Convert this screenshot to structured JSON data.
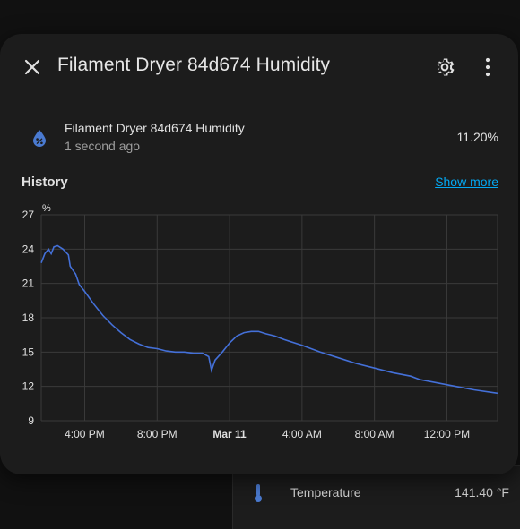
{
  "dialog": {
    "title": "Filament Dryer 84d674 Humidity"
  },
  "entity": {
    "name": "Filament Dryer 84d674 Humidity",
    "last_changed": "1 second ago",
    "state": "11.20%"
  },
  "history": {
    "heading": "History",
    "show_more": "Show more"
  },
  "background_entity": {
    "label": "Temperature",
    "value": "141.40 °F"
  },
  "icons": {
    "close": "close-icon",
    "settings": "gear-icon",
    "more": "dots-vertical-icon",
    "entity": "water-percent-icon",
    "background": "thermometer-icon"
  },
  "colors": {
    "line": "#4470d8",
    "link": "#03a9f4",
    "entity_icon": "#4a7ad0"
  },
  "chart_data": {
    "type": "line",
    "unit": "%",
    "ylim": [
      9,
      27
    ],
    "yticks": [
      9,
      12,
      15,
      18,
      21,
      24,
      27
    ],
    "xticks": [
      {
        "label": "4:00 PM",
        "hour": 16,
        "bold": false
      },
      {
        "label": "8:00 PM",
        "hour": 20,
        "bold": false
      },
      {
        "label": "Mar 11",
        "hour": 24,
        "bold": true
      },
      {
        "label": "4:00 AM",
        "hour": 28,
        "bold": false
      },
      {
        "label": "8:00 AM",
        "hour": 32,
        "bold": false
      },
      {
        "label": "12:00 PM",
        "hour": 36,
        "bold": false
      }
    ],
    "xlim": [
      13.6,
      38.8
    ],
    "grid": true,
    "series": [
      {
        "name": "",
        "points": [
          [
            13.6,
            22.8
          ],
          [
            13.8,
            23.6
          ],
          [
            14.0,
            24.0
          ],
          [
            14.15,
            23.6
          ],
          [
            14.3,
            24.2
          ],
          [
            14.5,
            24.3
          ],
          [
            14.8,
            24.0
          ],
          [
            15.1,
            23.5
          ],
          [
            15.2,
            22.5
          ],
          [
            15.5,
            21.8
          ],
          [
            15.7,
            20.9
          ],
          [
            16.0,
            20.3
          ],
          [
            16.5,
            19.2
          ],
          [
            17.0,
            18.2
          ],
          [
            17.5,
            17.4
          ],
          [
            18.0,
            16.7
          ],
          [
            18.5,
            16.1
          ],
          [
            19.0,
            15.7
          ],
          [
            19.5,
            15.4
          ],
          [
            20.0,
            15.3
          ],
          [
            20.5,
            15.1
          ],
          [
            21.0,
            15.0
          ],
          [
            21.5,
            15.0
          ],
          [
            22.0,
            14.9
          ],
          [
            22.5,
            14.9
          ],
          [
            22.85,
            14.6
          ],
          [
            23.0,
            13.4
          ],
          [
            23.2,
            14.3
          ],
          [
            23.6,
            15.0
          ],
          [
            24.0,
            15.8
          ],
          [
            24.4,
            16.4
          ],
          [
            24.8,
            16.7
          ],
          [
            25.2,
            16.8
          ],
          [
            25.6,
            16.8
          ],
          [
            26.0,
            16.6
          ],
          [
            26.5,
            16.4
          ],
          [
            27.0,
            16.1
          ],
          [
            28.0,
            15.6
          ],
          [
            29.0,
            15.0
          ],
          [
            30.0,
            14.5
          ],
          [
            31.0,
            14.0
          ],
          [
            32.0,
            13.6
          ],
          [
            33.0,
            13.2
          ],
          [
            34.0,
            12.9
          ],
          [
            34.5,
            12.6
          ],
          [
            35.5,
            12.3
          ],
          [
            36.5,
            12.0
          ],
          [
            37.5,
            11.7
          ],
          [
            38.8,
            11.4
          ]
        ]
      }
    ]
  }
}
